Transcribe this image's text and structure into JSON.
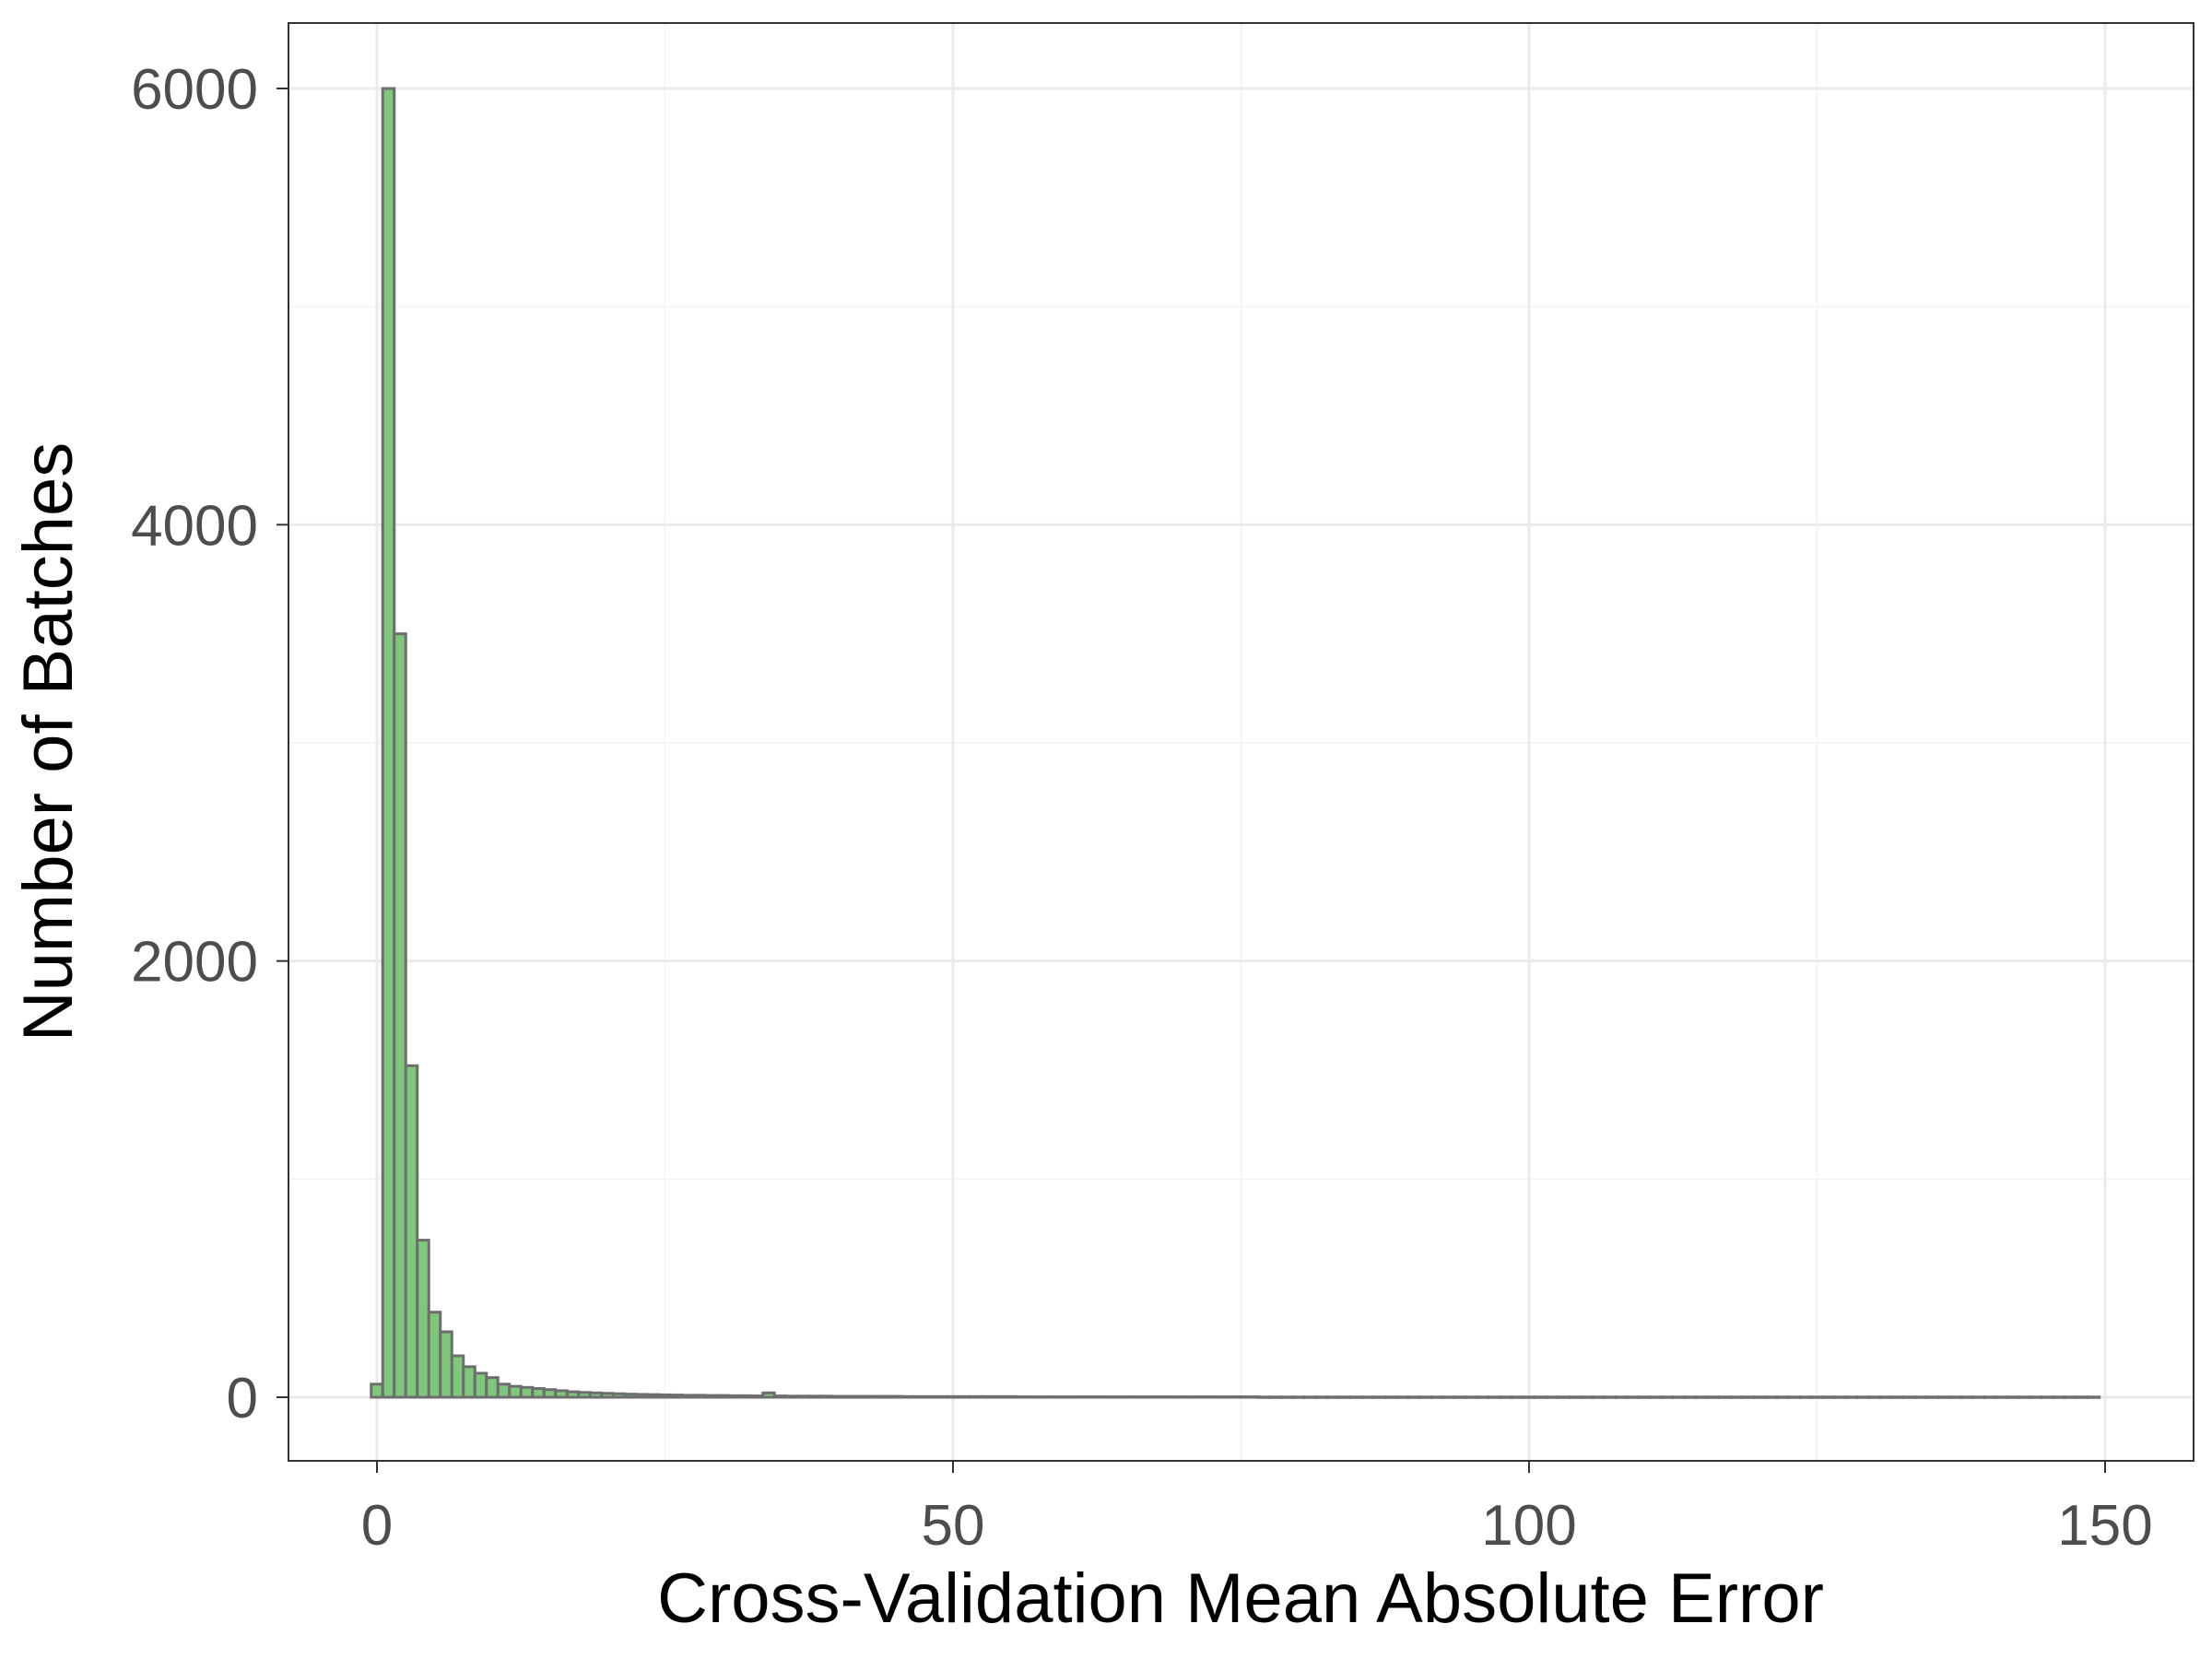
{
  "chart_data": {
    "type": "bar",
    "subtype": "histogram",
    "title": "",
    "xlabel": "Cross-Validation Mean Absolute Error",
    "ylabel": "Number of Batches",
    "xlim": [
      -15,
      16.5
    ],
    "ylim": [
      -300,
      6300
    ],
    "x_ticks": [
      {
        "value": 0,
        "label": "0"
      },
      {
        "value": 50,
        "label": "50"
      },
      {
        "value": 100,
        "label": "100"
      },
      {
        "value": 150,
        "label": "150"
      }
    ],
    "y_ticks": [
      {
        "value": 0,
        "label": "0"
      },
      {
        "value": 2000,
        "label": "2000"
      },
      {
        "value": 4000,
        "label": "4000"
      },
      {
        "value": 6000,
        "label": "6000"
      }
    ],
    "x_minor_gridlines": [
      25,
      75,
      125
    ],
    "y_minor_gridlines": [
      1000,
      3000,
      5000
    ],
    "grid": true,
    "bin_width": 1,
    "bin_start": -0.5,
    "bin_counts": [
      60,
      6000,
      3500,
      1520,
      720,
      390,
      300,
      190,
      140,
      110,
      90,
      60,
      50,
      45,
      40,
      35,
      30,
      25,
      22,
      20,
      18,
      16,
      14,
      13,
      12,
      11,
      10,
      9,
      9,
      8,
      8,
      7,
      7,
      6,
      20,
      6,
      5,
      5,
      5,
      5,
      4,
      4,
      4,
      4,
      4,
      4,
      3,
      3,
      3,
      3,
      3,
      3,
      3,
      3,
      3,
      3,
      2,
      2,
      2,
      2,
      2,
      2,
      2,
      2,
      2,
      2,
      2,
      2,
      2,
      2,
      2,
      2,
      2,
      2,
      2,
      2,
      2,
      1,
      1,
      1,
      1,
      1,
      1,
      1,
      1,
      1,
      1,
      1,
      1,
      1,
      1,
      1,
      1,
      1,
      1,
      1,
      1,
      1,
      1,
      1,
      1,
      1,
      1,
      1,
      1,
      1,
      1,
      1,
      1,
      1,
      1,
      1,
      1,
      1,
      1,
      1,
      1,
      1,
      1,
      1,
      1,
      1,
      1,
      1,
      1,
      1,
      1,
      1,
      1,
      1,
      1,
      1,
      1,
      1,
      1,
      1,
      1,
      1,
      1,
      1,
      1,
      1,
      1,
      1,
      1,
      1,
      1,
      1,
      1,
      1
    ],
    "fill_color": "#7fc77a",
    "stroke_color": "#6e6e6e"
  }
}
